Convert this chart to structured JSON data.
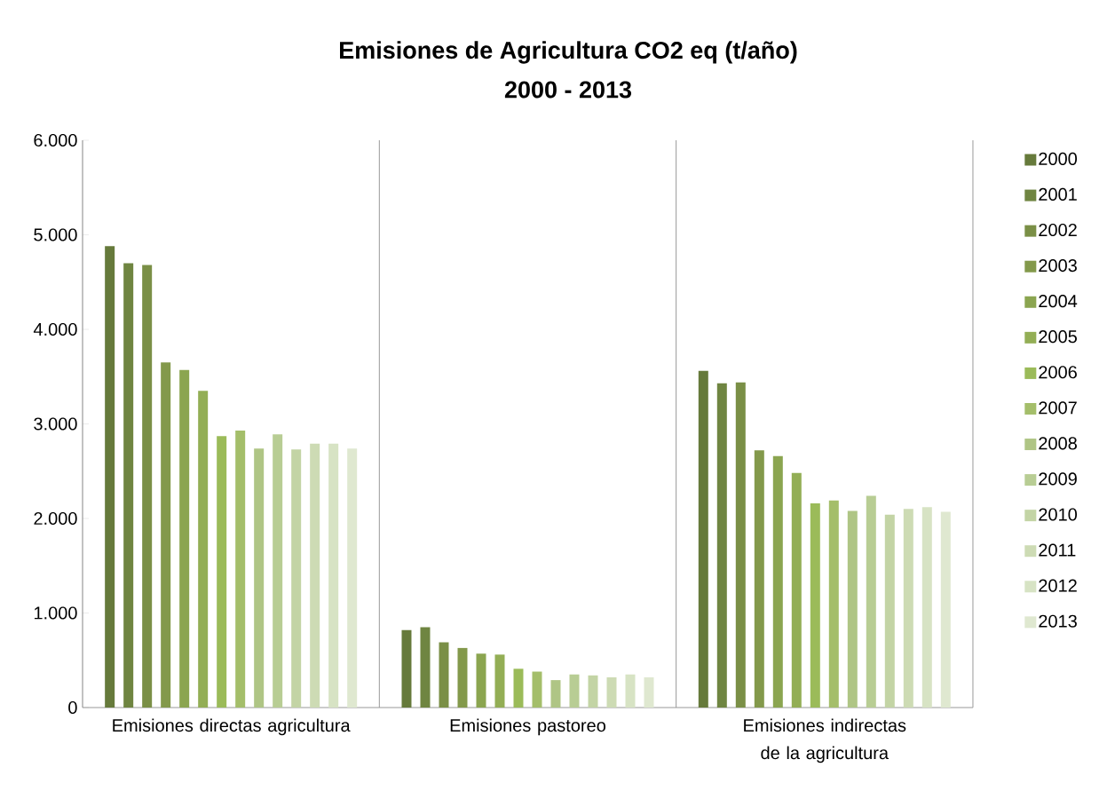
{
  "chart_data": {
    "type": "bar",
    "title": "Emisiones de Agricultura CO2 eq (t/año)",
    "subtitle": "2000 - 2013",
    "categories": [
      "Emisiones directas agricultura",
      "Emisiones pastoreo",
      "Emisiones indirectas de la agricultura"
    ],
    "series": [
      {
        "name": "2000",
        "color": "#667a3b",
        "values": [
          4880,
          820,
          3560
        ]
      },
      {
        "name": "2001",
        "color": "#6f8541",
        "values": [
          4700,
          850,
          3430
        ]
      },
      {
        "name": "2002",
        "color": "#7a8f46",
        "values": [
          4680,
          690,
          3440
        ]
      },
      {
        "name": "2003",
        "color": "#83994b",
        "values": [
          3650,
          630,
          2720
        ]
      },
      {
        "name": "2004",
        "color": "#8ba550",
        "values": [
          3570,
          570,
          2660
        ]
      },
      {
        "name": "2005",
        "color": "#93ae55",
        "values": [
          3350,
          560,
          2480
        ]
      },
      {
        "name": "2006",
        "color": "#9bbb59",
        "values": [
          2870,
          410,
          2160
        ]
      },
      {
        "name": "2007",
        "color": "#a4be6a",
        "values": [
          2930,
          380,
          2190
        ]
      },
      {
        "name": "2008",
        "color": "#afc585",
        "values": [
          2740,
          290,
          2080
        ]
      },
      {
        "name": "2009",
        "color": "#b8cd94",
        "values": [
          2890,
          350,
          2240
        ]
      },
      {
        "name": "2010",
        "color": "#c3d4a5",
        "values": [
          2730,
          340,
          2040
        ]
      },
      {
        "name": "2011",
        "color": "#cddbb4",
        "values": [
          2790,
          320,
          2100
        ]
      },
      {
        "name": "2012",
        "color": "#d7e3c4",
        "values": [
          2790,
          350,
          2120
        ]
      },
      {
        "name": "2013",
        "color": "#dfe8d0",
        "values": [
          2740,
          320,
          2070
        ]
      }
    ],
    "ylim": [
      0,
      6000
    ],
    "yticks": [
      0,
      {
        "value": 1000,
        "label": "1.000"
      },
      {
        "value": 2000,
        "label": "2.000"
      },
      {
        "value": 3000,
        "label": "3.000"
      },
      {
        "value": 4000,
        "label": "4.000"
      },
      {
        "value": 5000,
        "label": "5.000"
      },
      {
        "value": 6000,
        "label": "6.000"
      }
    ],
    "grid": "x",
    "legend": "right"
  }
}
